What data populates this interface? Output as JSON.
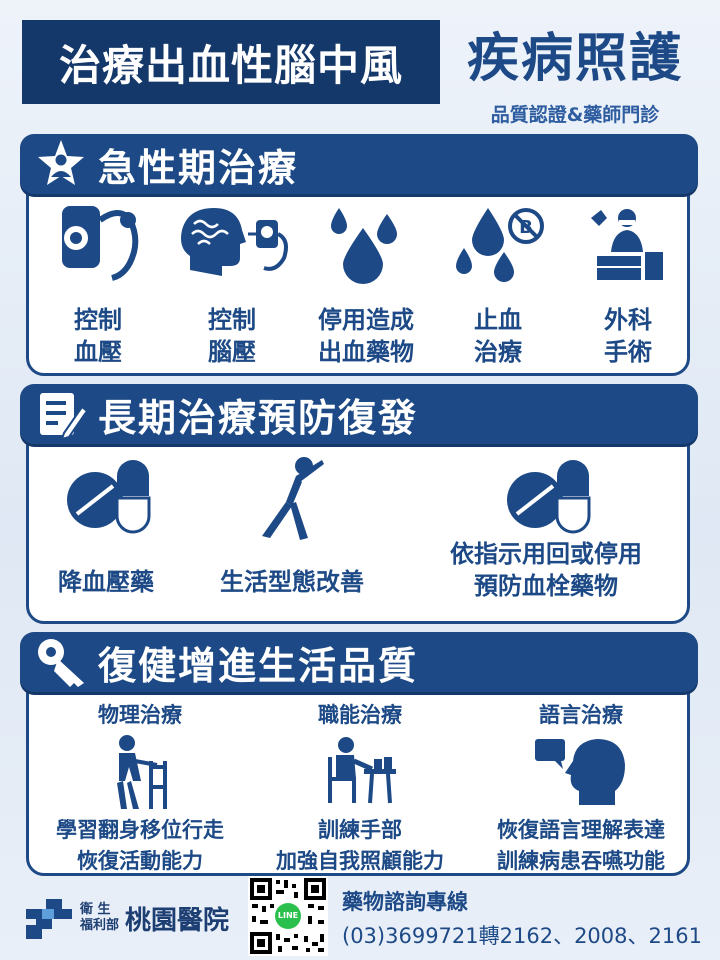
{
  "header": {
    "title": "治療出血性腦中風",
    "brand_title": "疾病照護",
    "brand_subtitle": "品質認證&藥師門診"
  },
  "sections": [
    {
      "title": "急性期治療",
      "icon": "star-person-icon",
      "items": [
        {
          "line1": "控制",
          "line2": "血壓",
          "icon": "blood-pressure-monitor-icon"
        },
        {
          "line1": "控制",
          "line2": "腦壓",
          "icon": "brain-pressure-icon"
        },
        {
          "line1": "停用造成",
          "line2": "出血藥物",
          "icon": "blood-drops-icon"
        },
        {
          "line1": "止血",
          "line2": "治療",
          "icon": "stop-bleeding-icon"
        },
        {
          "line1": "外科",
          "line2": "手術",
          "icon": "surgery-icon"
        }
      ]
    },
    {
      "title": "長期治療預防復發",
      "icon": "checklist-pencil-icon",
      "items": [
        {
          "line1": "降血壓藥",
          "icon": "pill-capsule-icon"
        },
        {
          "line1": "生活型態改善",
          "icon": "stretching-person-icon"
        },
        {
          "line1": "依指示用回或停用",
          "line2": "預防血栓藥物",
          "icon": "pill-capsule-icon"
        }
      ]
    },
    {
      "title": "復健增進生活品質",
      "icon": "key-icon",
      "items": [
        {
          "heading": "物理治療",
          "line1": "學習翻身移位行走",
          "line2": "恢復活動能力",
          "icon": "walker-person-icon"
        },
        {
          "heading": "職能治療",
          "line1": "訓練手部",
          "line2": "加強自我照顧能力",
          "icon": "desk-work-person-icon"
        },
        {
          "heading": "語言治療",
          "line1": "恢復語言理解表達",
          "line2": "訓練病患吞嚥功能",
          "icon": "speech-head-icon"
        }
      ]
    }
  ],
  "footer": {
    "org_small_1": "衛 生",
    "org_small_2": "福利部",
    "hospital": "桃園醫院",
    "qr_badge": "LINE",
    "consult_title": "藥物諮詢專線",
    "consult_phone": "(03)3699721轉2162、2008、2161"
  },
  "colors": {
    "primary": "#1d4a86",
    "dark": "#15386b",
    "background": "#e4ecf6",
    "line_green": "#2bc04d"
  }
}
